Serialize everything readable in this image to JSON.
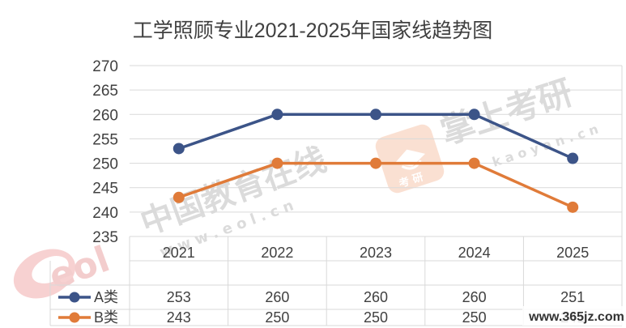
{
  "watermarks": {
    "eol_logo": "eol",
    "eol_cn": "中国教育在线",
    "eol_url": "w w w . e o l . c n",
    "kaoyan_badge": "考 研",
    "kaoyan_cn": "掌上考研",
    "kaoyan_url": "k a o y a n . c n",
    "site_stamp": "www.365jz.com"
  },
  "colors": {
    "series_a": "#3C5488",
    "series_b": "#E07B39",
    "grid": "#D9D9D9",
    "text": "#404040"
  },
  "chart_data": {
    "type": "line",
    "title": "工学照顾专业2021-2025年国家线趋势图",
    "x": [
      "2021",
      "2022",
      "2023",
      "2024",
      "2025"
    ],
    "ylim": [
      235,
      270
    ],
    "yticks": [
      270,
      265,
      260,
      255,
      250,
      245,
      240,
      235
    ],
    "grid": true,
    "legend_placement": "table-left",
    "series": [
      {
        "name": "A类",
        "values": [
          253,
          260,
          260,
          260,
          251
        ]
      },
      {
        "name": "B类",
        "values": [
          243,
          250,
          250,
          250,
          241
        ]
      }
    ]
  }
}
